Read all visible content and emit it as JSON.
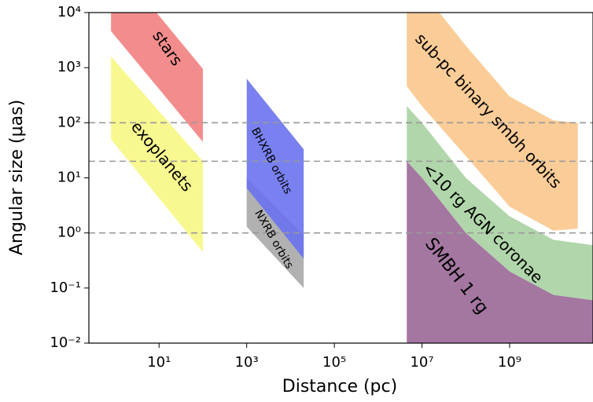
{
  "chart_data": {
    "type": "band",
    "xlabel": "Distance (pc)",
    "ylabel": "Angular size (μas)",
    "log_x": true,
    "log_y": true,
    "xlim": [
      0.25,
      80000000000
    ],
    "ylim": [
      0.01,
      10000
    ],
    "xticks": [
      {
        "value": 10,
        "label": "10¹"
      },
      {
        "value": 1000,
        "label": "10³"
      },
      {
        "value": 100000,
        "label": "10⁵"
      },
      {
        "value": 10000000,
        "label": "10⁷"
      },
      {
        "value": 1000000000,
        "label": "10⁹"
      }
    ],
    "yticks": [
      {
        "value": 0.01,
        "label": "10⁻²"
      },
      {
        "value": 0.1,
        "label": "10⁻¹"
      },
      {
        "value": 1,
        "label": "10⁰"
      },
      {
        "value": 10,
        "label": "10¹"
      },
      {
        "value": 100,
        "label": "10²"
      },
      {
        "value": 1000,
        "label": "10³"
      },
      {
        "value": 10000,
        "label": "10⁴"
      }
    ],
    "hlines": [
      100,
      20,
      1
    ],
    "series": [
      {
        "name": "stars",
        "color": "#f28080",
        "x": [
          0.8,
          100
        ],
        "upper": [
          100000,
          950
        ],
        "lower": [
          4600,
          45
        ]
      },
      {
        "name": "exoplanets",
        "color": "#f7f784",
        "x": [
          0.8,
          100
        ],
        "upper": [
          1600,
          20
        ],
        "lower": [
          50,
          0.45
        ]
      },
      {
        "name": "NXRB orbits",
        "color": "#a8a8a8",
        "x": [
          1000,
          20000
        ],
        "upper": [
          10,
          0.9
        ],
        "lower": [
          1.3,
          0.1
        ]
      },
      {
        "name": "BHXRB orbits",
        "color": "#6a73ee",
        "x": [
          1000,
          20000
        ],
        "upper": [
          630,
          33
        ],
        "lower": [
          6.5,
          0.34
        ]
      },
      {
        "name": "sub-pc binary smbh orbits",
        "color": "#f9c68c",
        "x": [
          4500000,
          10000000,
          100000000,
          1000000000,
          10000000000,
          36000000000
        ],
        "upper": [
          100000,
          25000,
          2500,
          300,
          110,
          100
        ],
        "lower": [
          460,
          200,
          25,
          3,
          1.1,
          1.2
        ]
      },
      {
        "name": "<10 rg AGN coronae",
        "color": "#a8d2a2",
        "x": [
          4500000,
          10000000,
          100000000,
          1000000000,
          10000000000,
          80000000000
        ],
        "upper": [
          200,
          100,
          10,
          2,
          0.75,
          0.6
        ],
        "lower": [
          20,
          10,
          1,
          0.2,
          0.075,
          0.06
        ]
      },
      {
        "name": "SMBH 1 rg",
        "color": "#9a6897",
        "x": [
          4500000,
          10000000,
          100000000,
          1000000000,
          10000000000,
          80000000000
        ],
        "upper": [
          20,
          10,
          1,
          0.2,
          0.075,
          0.06
        ],
        "lower": [
          0.01,
          0.01,
          0.01,
          0.01,
          0.01,
          0.01
        ]
      }
    ]
  }
}
